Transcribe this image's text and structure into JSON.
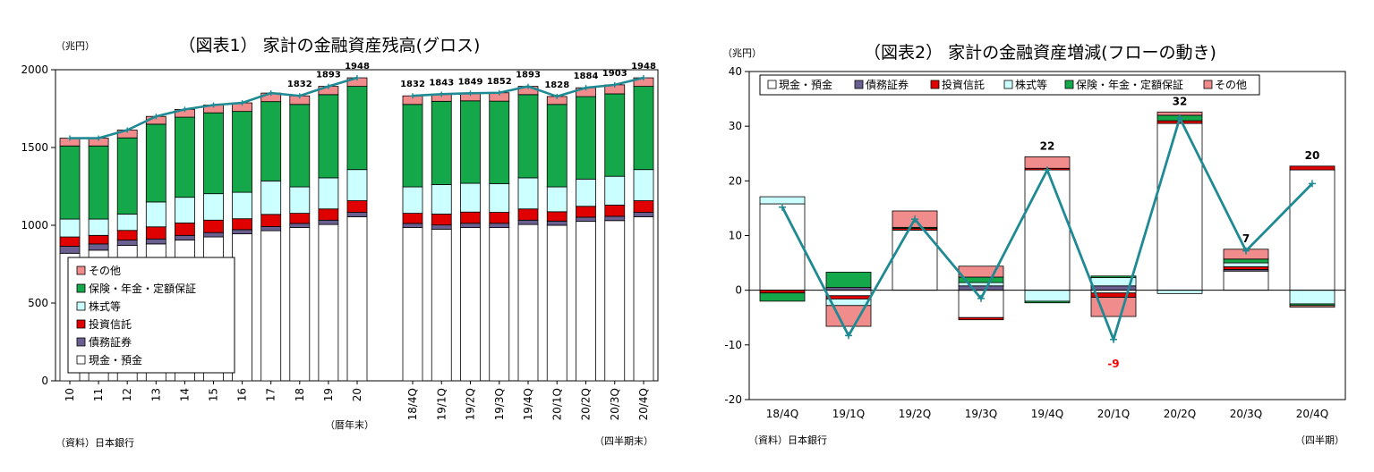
{
  "colors": {
    "cash": "#ffffff",
    "bonds": "#6b5f8f",
    "trusts": "#e00000",
    "stocks": "#ccffff",
    "insurance": "#14a84a",
    "other": "#f08c8c",
    "line": "#1f8a93",
    "neg_label": "#ff0000"
  },
  "chart_data": [
    {
      "type": "bar",
      "title": "（図表1） 家計の金融資産残高(グロス)",
      "ylabel": "（兆円）",
      "source": "（資料）日本銀行",
      "xlabel_left": "（暦年末）",
      "xlabel_right": "（四半期末）",
      "ylim": [
        0,
        2000
      ],
      "yticks": [
        "0",
        "500",
        "1000",
        "1500",
        "2000"
      ],
      "stacked": true,
      "legend_position": "bottom-left",
      "legend": [
        "その他",
        "保険・年金・定額保証",
        "株式等",
        "投資信託",
        "債務証券",
        "現金・預金"
      ],
      "categories": [
        "10",
        "11",
        "12",
        "13",
        "14",
        "15",
        "16",
        "17",
        "18",
        "19",
        "20",
        "18/4Q",
        "19/1Q",
        "19/2Q",
        "19/3Q",
        "19/4Q",
        "20/1Q",
        "20/2Q",
        "20/3Q",
        "20/4Q"
      ],
      "series": [
        {
          "name": "現金・預金",
          "color_key": "cash",
          "values": [
            820,
            840,
            870,
            880,
            905,
            925,
            945,
            965,
            985,
            1005,
            1055,
            985,
            975,
            985,
            985,
            1005,
            1000,
            1025,
            1030,
            1055
          ]
        },
        {
          "name": "債務証券",
          "color_key": "bonds",
          "values": [
            45,
            40,
            35,
            32,
            30,
            28,
            27,
            27,
            27,
            28,
            28,
            27,
            27,
            28,
            28,
            28,
            27,
            27,
            28,
            28
          ]
        },
        {
          "name": "投資信託",
          "color_key": "trusts",
          "values": [
            60,
            55,
            62,
            78,
            80,
            80,
            70,
            78,
            65,
            72,
            75,
            65,
            70,
            72,
            70,
            72,
            60,
            70,
            72,
            75
          ]
        },
        {
          "name": "株式等",
          "color_key": "stocks",
          "values": [
            115,
            105,
            105,
            160,
            165,
            170,
            170,
            215,
            170,
            200,
            200,
            170,
            190,
            185,
            185,
            200,
            160,
            175,
            185,
            200
          ]
        },
        {
          "name": "保険・年金・定額保証",
          "color_key": "insurance",
          "values": [
            470,
            470,
            490,
            500,
            515,
            520,
            520,
            510,
            530,
            535,
            535,
            530,
            535,
            530,
            530,
            535,
            530,
            530,
            530,
            535
          ]
        },
        {
          "name": "その他",
          "color_key": "other",
          "values": [
            50,
            50,
            50,
            50,
            50,
            50,
            55,
            55,
            55,
            53,
            55,
            55,
            46,
            49,
            54,
            53,
            51,
            57,
            58,
            55
          ]
        }
      ],
      "total": {
        "values": [
          1560,
          1560,
          1612,
          1700,
          1745,
          1773,
          1787,
          1850,
          1832,
          1893,
          1948,
          1832,
          1843,
          1849,
          1852,
          1893,
          1828,
          1884,
          1903,
          1948
        ],
        "labels": [
          "",
          "",
          "",
          "",
          "",
          "",
          "",
          "",
          "1832",
          "1893",
          "1948",
          "1832",
          "1843",
          "1849",
          "1852",
          "1893",
          "1828",
          "1884",
          "1903",
          "1948"
        ]
      }
    },
    {
      "type": "bar",
      "title": "（図表2） 家計の金融資産増減(フローの動き)",
      "ylabel": "（兆円）",
      "source": "（資料）日本銀行",
      "xlabel": "（四半期）",
      "ylim": [
        -20,
        40
      ],
      "yticks": [
        "-20",
        "-10",
        "0",
        "10",
        "20",
        "30",
        "40"
      ],
      "stacked": true,
      "legend_position": "top",
      "legend": [
        "現金・預金",
        "債務証券",
        "投資信託",
        "株式等",
        "保険・年金・定額保証",
        "その他"
      ],
      "categories": [
        "18/4Q",
        "19/1Q",
        "19/2Q",
        "19/3Q",
        "19/4Q",
        "20/1Q",
        "20/2Q",
        "20/3Q",
        "20/4Q"
      ],
      "series": [
        {
          "name": "現金・預金",
          "color_key": "cash",
          "values": [
            15.8,
            -1.0,
            11.0,
            -5.0,
            22.0,
            -0.5,
            30.5,
            3.5,
            22.0
          ]
        },
        {
          "name": "債務証券",
          "color_key": "bonds",
          "values": [
            0.0,
            0.5,
            0.0,
            0.8,
            0.0,
            0.8,
            0.0,
            0.3,
            0.0
          ]
        },
        {
          "name": "投資信託",
          "color_key": "trusts",
          "values": [
            -0.5,
            -0.6,
            0.3,
            -0.4,
            0.3,
            -0.8,
            0.5,
            0.5,
            0.7
          ]
        },
        {
          "name": "株式等",
          "color_key": "stocks",
          "values": [
            1.3,
            -1.2,
            0.0,
            0.6,
            -2.0,
            1.5,
            -0.6,
            0.7,
            -2.5
          ]
        },
        {
          "name": "保険・年金・定額保証",
          "color_key": "insurance",
          "values": [
            -1.5,
            2.8,
            0.2,
            1.0,
            -0.3,
            0.3,
            1.0,
            0.7,
            -0.3
          ]
        },
        {
          "name": "その他",
          "color_key": "other",
          "values": [
            0.0,
            -3.8,
            3.0,
            2.0,
            2.1,
            -3.5,
            0.6,
            1.8,
            -0.3
          ]
        }
      ],
      "total": {
        "values": [
          15.2,
          -8.3,
          13.0,
          -1.5,
          22.0,
          -9.0,
          31.5,
          7.2,
          19.5
        ],
        "labels": [
          "",
          "",
          "",
          "",
          "22",
          "-9",
          "32",
          "7",
          "20"
        ]
      }
    }
  ]
}
